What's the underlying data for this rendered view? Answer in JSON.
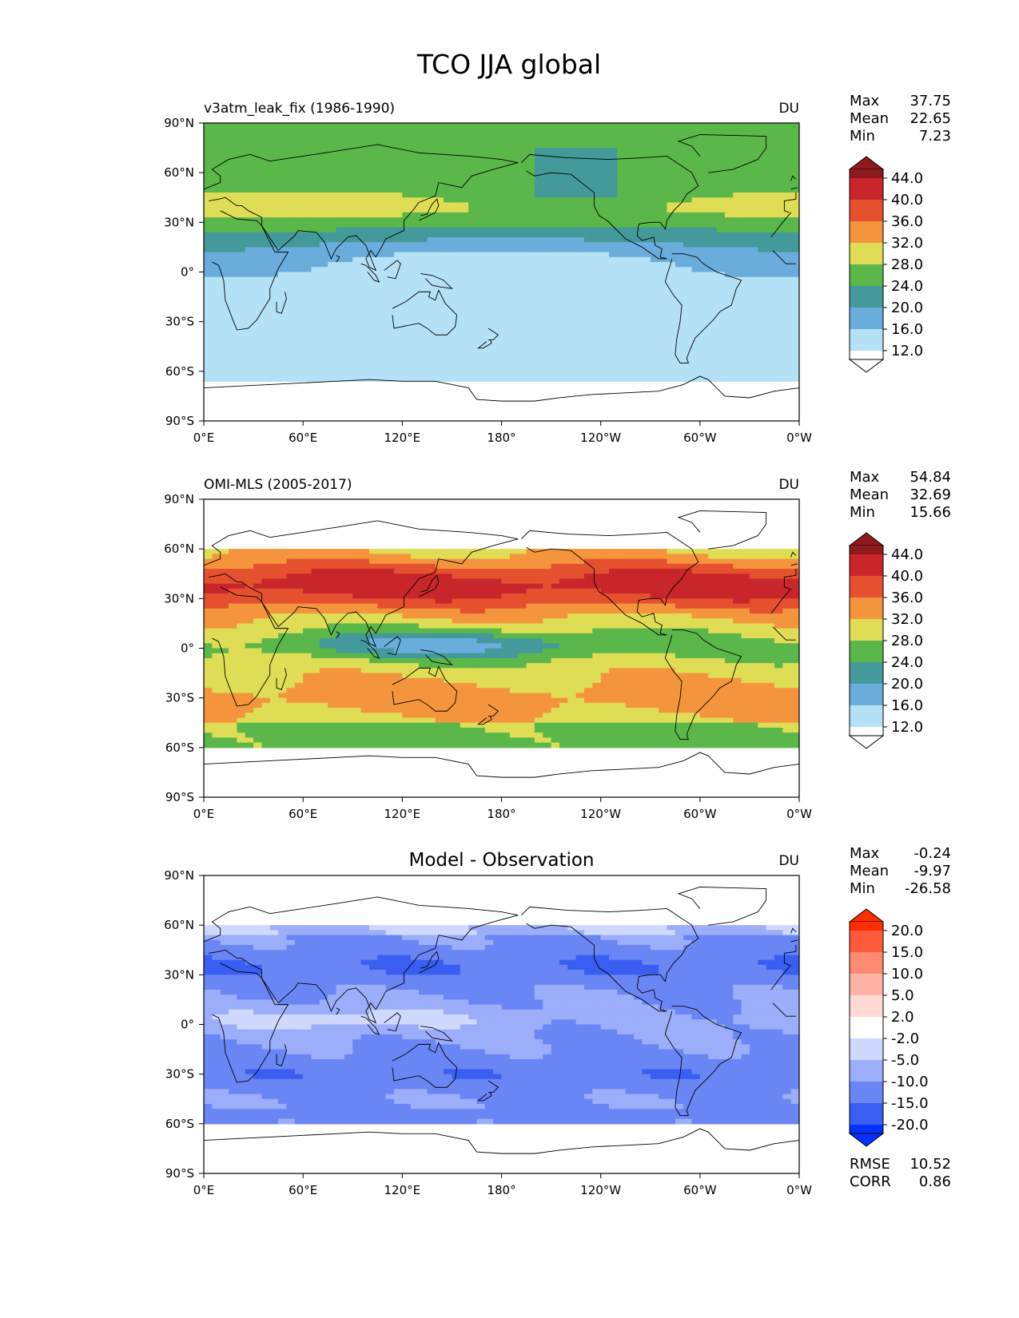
{
  "figure": {
    "title": "TCO JJA global"
  },
  "axes": {
    "lat_labels": [
      "90°N",
      "60°N",
      "30°N",
      "0°",
      "30°S",
      "60°S",
      "90°S"
    ],
    "lon_labels": [
      "0°E",
      "60°E",
      "120°E",
      "180°",
      "120°W",
      "60°W",
      "0°W"
    ]
  },
  "panels": [
    {
      "left_title": "v3atm_leak_fix (1986-1990)",
      "center_title": "",
      "unit": "DU",
      "stats": [
        {
          "label": "Max",
          "value": "37.75"
        },
        {
          "label": "Mean",
          "value": "22.65"
        },
        {
          "label": "Min",
          "value": "7.23"
        }
      ],
      "colorbar": "abs",
      "data_coverage_lat": [
        -90,
        90
      ],
      "field": "model"
    },
    {
      "left_title": "OMI-MLS (2005-2017)",
      "center_title": "",
      "unit": "DU",
      "stats": [
        {
          "label": "Max",
          "value": "54.84"
        },
        {
          "label": "Mean",
          "value": "32.69"
        },
        {
          "label": "Min",
          "value": "15.66"
        }
      ],
      "colorbar": "abs",
      "data_coverage_lat": [
        -60,
        60
      ],
      "field": "obs"
    },
    {
      "left_title": "",
      "center_title": "Model - Observation",
      "unit": "DU",
      "stats": [
        {
          "label": "Max",
          "value": "-0.24"
        },
        {
          "label": "Mean",
          "value": "-9.97"
        },
        {
          "label": "Min",
          "value": "-26.58"
        }
      ],
      "bottom_stats": [
        {
          "label": "RMSE",
          "value": "10.52"
        },
        {
          "label": "CORR",
          "value": "0.86"
        }
      ],
      "colorbar": "diff",
      "data_coverage_lat": [
        -60,
        60
      ],
      "field": "diff"
    }
  ],
  "colorbars": {
    "abs": {
      "ticks": [
        "44.0",
        "40.0",
        "36.0",
        "32.0",
        "28.0",
        "24.0",
        "20.0",
        "16.0",
        "12.0"
      ],
      "colors_top_to_bottom": [
        "#8e1a1d",
        "#c8262a",
        "#e5502f",
        "#f4953d",
        "#dfdd55",
        "#5bb74a",
        "#44999a",
        "#6aaddc",
        "#b5e1f7",
        "#ffffff"
      ]
    },
    "diff": {
      "ticks": [
        "20.0",
        "15.0",
        "10.0",
        "5.0",
        "2.0",
        "-2.0",
        "-5.0",
        "-10.0",
        "-15.0",
        "-20.0"
      ],
      "colors_top_to_bottom": [
        "#ff2e00",
        "#ff5a3c",
        "#ff8a72",
        "#ffb2a6",
        "#ffd9d3",
        "#ffffff",
        "#cfd8ff",
        "#9cadfa",
        "#6a86f5",
        "#3a5ef2",
        "#0331fe"
      ]
    }
  }
}
